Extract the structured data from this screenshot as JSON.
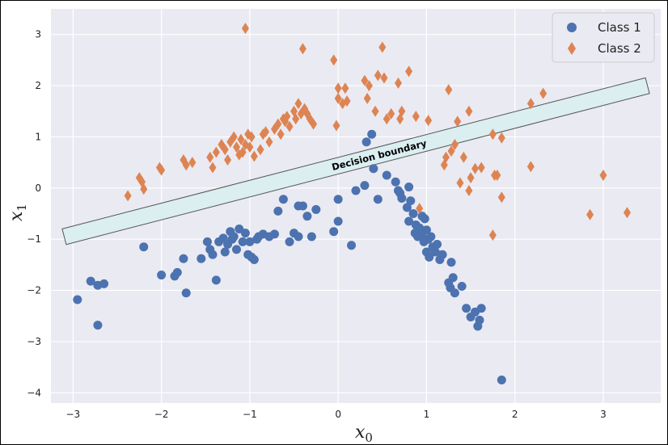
{
  "chart_data": {
    "type": "scatter",
    "title": "",
    "xlabel": "x",
    "xlabel_sub": "0",
    "ylabel": "x",
    "ylabel_sub": "1",
    "xlim": [
      -3.25,
      3.65
    ],
    "ylim": [
      -4.2,
      3.5
    ],
    "xticks": [
      -3,
      -2,
      -1,
      0,
      1,
      2,
      3
    ],
    "yticks": [
      -4,
      -3,
      -2,
      -1,
      0,
      1,
      2,
      3
    ],
    "grid": true,
    "legend_position": "top-right",
    "annotation": "Decision boundary",
    "boundary_line": {
      "x": [
        -3.1,
        3.5
      ],
      "y": [
        -0.95,
        2.0
      ]
    },
    "series": [
      {
        "name": "Class 1",
        "marker": "circle",
        "color": "#4c72b0",
        "points": [
          [
            -2.95,
            -2.18
          ],
          [
            -2.8,
            -1.82
          ],
          [
            -2.72,
            -1.9
          ],
          [
            -2.65,
            -1.87
          ],
          [
            -2.72,
            -2.68
          ],
          [
            -2.2,
            -1.15
          ],
          [
            -2.0,
            -1.7
          ],
          [
            -1.85,
            -1.72
          ],
          [
            -1.82,
            -1.65
          ],
          [
            -1.75,
            -1.38
          ],
          [
            -1.72,
            -2.05
          ],
          [
            -1.55,
            -1.38
          ],
          [
            -1.48,
            -1.05
          ],
          [
            -1.45,
            -1.2
          ],
          [
            -1.42,
            -1.3
          ],
          [
            -1.38,
            -1.8
          ],
          [
            -1.35,
            -1.05
          ],
          [
            -1.3,
            -0.98
          ],
          [
            -1.28,
            -1.25
          ],
          [
            -1.25,
            -1.1
          ],
          [
            -1.22,
            -0.85
          ],
          [
            -1.2,
            -1.0
          ],
          [
            -1.18,
            -0.95
          ],
          [
            -1.15,
            -1.2
          ],
          [
            -1.12,
            -0.8
          ],
          [
            -1.08,
            -1.05
          ],
          [
            -1.05,
            -0.88
          ],
          [
            -1.02,
            -1.3
          ],
          [
            -1.0,
            -1.05
          ],
          [
            -0.98,
            -1.35
          ],
          [
            -0.95,
            -1.4
          ],
          [
            -0.92,
            -1.0
          ],
          [
            -0.9,
            -0.95
          ],
          [
            -0.85,
            -0.9
          ],
          [
            -0.78,
            -0.95
          ],
          [
            -0.72,
            -0.9
          ],
          [
            -0.68,
            -0.45
          ],
          [
            -0.62,
            -0.22
          ],
          [
            -0.55,
            -1.05
          ],
          [
            -0.5,
            -0.88
          ],
          [
            -0.45,
            -0.95
          ],
          [
            -0.45,
            -0.35
          ],
          [
            -0.4,
            -0.35
          ],
          [
            -0.35,
            -0.55
          ],
          [
            -0.3,
            -0.95
          ],
          [
            -0.25,
            -0.42
          ],
          [
            -0.05,
            -0.85
          ],
          [
            0.0,
            -0.65
          ],
          [
            0.0,
            -0.22
          ],
          [
            0.15,
            -1.12
          ],
          [
            0.2,
            -0.05
          ],
          [
            0.3,
            0.05
          ],
          [
            0.32,
            0.9
          ],
          [
            0.38,
            1.05
          ],
          [
            0.4,
            0.38
          ],
          [
            0.45,
            -0.22
          ],
          [
            0.55,
            0.25
          ],
          [
            0.65,
            0.12
          ],
          [
            0.68,
            -0.05
          ],
          [
            0.7,
            -0.1
          ],
          [
            0.72,
            -0.2
          ],
          [
            0.78,
            -0.38
          ],
          [
            0.8,
            -0.65
          ],
          [
            0.8,
            0.02
          ],
          [
            0.82,
            -0.25
          ],
          [
            0.85,
            -0.5
          ],
          [
            0.87,
            -0.88
          ],
          [
            0.88,
            -0.72
          ],
          [
            0.9,
            -0.95
          ],
          [
            0.92,
            -0.78
          ],
          [
            0.95,
            -0.9
          ],
          [
            0.95,
            -0.55
          ],
          [
            0.97,
            -1.05
          ],
          [
            0.98,
            -0.6
          ],
          [
            1.0,
            -0.82
          ],
          [
            1.0,
            -1.25
          ],
          [
            1.02,
            -1.0
          ],
          [
            1.03,
            -1.35
          ],
          [
            1.05,
            -0.95
          ],
          [
            1.07,
            -1.15
          ],
          [
            1.1,
            -1.25
          ],
          [
            1.12,
            -1.1
          ],
          [
            1.15,
            -1.4
          ],
          [
            1.18,
            -1.3
          ],
          [
            1.25,
            -1.85
          ],
          [
            1.27,
            -1.95
          ],
          [
            1.28,
            -1.45
          ],
          [
            1.3,
            -1.75
          ],
          [
            1.32,
            -2.05
          ],
          [
            1.4,
            -1.92
          ],
          [
            1.45,
            -2.35
          ],
          [
            1.5,
            -2.52
          ],
          [
            1.55,
            -2.42
          ],
          [
            1.58,
            -2.7
          ],
          [
            1.6,
            -2.58
          ],
          [
            1.62,
            -2.35
          ],
          [
            1.85,
            -3.75
          ]
        ]
      },
      {
        "name": "Class 2",
        "marker": "diamond",
        "color": "#dd8452",
        "points": [
          [
            -2.38,
            -0.15
          ],
          [
            -2.25,
            0.2
          ],
          [
            -2.22,
            0.12
          ],
          [
            -2.2,
            -0.02
          ],
          [
            -2.02,
            0.4
          ],
          [
            -2.0,
            0.35
          ],
          [
            -1.75,
            0.55
          ],
          [
            -1.72,
            0.45
          ],
          [
            -1.65,
            0.5
          ],
          [
            -1.45,
            0.6
          ],
          [
            -1.42,
            0.4
          ],
          [
            -1.38,
            0.7
          ],
          [
            -1.32,
            0.85
          ],
          [
            -1.28,
            0.75
          ],
          [
            -1.25,
            0.55
          ],
          [
            -1.22,
            0.9
          ],
          [
            -1.18,
            1.0
          ],
          [
            -1.15,
            0.8
          ],
          [
            -1.12,
            0.65
          ],
          [
            -1.1,
            0.95
          ],
          [
            -1.08,
            0.7
          ],
          [
            -1.05,
            0.85
          ],
          [
            -1.02,
            1.05
          ],
          [
            -1.0,
            0.8
          ],
          [
            -0.98,
            1.0
          ],
          [
            -0.95,
            0.62
          ],
          [
            -0.88,
            0.75
          ],
          [
            -0.85,
            1.05
          ],
          [
            -0.82,
            1.1
          ],
          [
            -0.78,
            0.9
          ],
          [
            -0.72,
            1.15
          ],
          [
            -0.68,
            1.25
          ],
          [
            -0.65,
            1.05
          ],
          [
            -0.62,
            1.35
          ],
          [
            -0.6,
            1.3
          ],
          [
            -0.58,
            1.4
          ],
          [
            -0.55,
            1.2
          ],
          [
            -0.5,
            1.5
          ],
          [
            -0.48,
            1.35
          ],
          [
            -0.45,
            1.65
          ],
          [
            -0.42,
            1.45
          ],
          [
            -0.38,
            1.55
          ],
          [
            -0.35,
            1.45
          ],
          [
            -0.32,
            1.35
          ],
          [
            -0.28,
            1.25
          ],
          [
            -0.4,
            2.72
          ],
          [
            -1.05,
            3.12
          ],
          [
            -0.05,
            2.5
          ],
          [
            -0.02,
            1.22
          ],
          [
            0.0,
            1.75
          ],
          [
            0.0,
            1.95
          ],
          [
            0.05,
            1.65
          ],
          [
            0.08,
            1.95
          ],
          [
            0.1,
            1.7
          ],
          [
            0.3,
            2.1
          ],
          [
            0.33,
            1.75
          ],
          [
            0.35,
            2.0
          ],
          [
            0.42,
            1.5
          ],
          [
            0.45,
            2.2
          ],
          [
            0.5,
            2.75
          ],
          [
            0.52,
            2.15
          ],
          [
            0.55,
            1.35
          ],
          [
            0.6,
            1.45
          ],
          [
            0.68,
            2.05
          ],
          [
            0.7,
            1.35
          ],
          [
            0.72,
            1.5
          ],
          [
            0.8,
            2.28
          ],
          [
            0.88,
            1.4
          ],
          [
            1.02,
            1.32
          ],
          [
            0.92,
            -0.4
          ],
          [
            1.2,
            0.45
          ],
          [
            1.22,
            0.6
          ],
          [
            1.25,
            1.92
          ],
          [
            1.28,
            0.72
          ],
          [
            1.32,
            0.85
          ],
          [
            1.35,
            1.3
          ],
          [
            1.38,
            0.1
          ],
          [
            1.42,
            0.6
          ],
          [
            1.48,
            1.5
          ],
          [
            1.48,
            -0.05
          ],
          [
            1.5,
            0.2
          ],
          [
            1.55,
            0.38
          ],
          [
            1.62,
            0.4
          ],
          [
            1.75,
            1.05
          ],
          [
            1.77,
            0.25
          ],
          [
            1.8,
            0.25
          ],
          [
            1.75,
            -0.92
          ],
          [
            1.85,
            0.98
          ],
          [
            1.85,
            -0.18
          ],
          [
            2.18,
            1.65
          ],
          [
            2.18,
            0.42
          ],
          [
            2.32,
            1.85
          ],
          [
            2.85,
            -0.52
          ],
          [
            3.0,
            0.25
          ],
          [
            3.27,
            -0.48
          ]
        ]
      }
    ]
  }
}
